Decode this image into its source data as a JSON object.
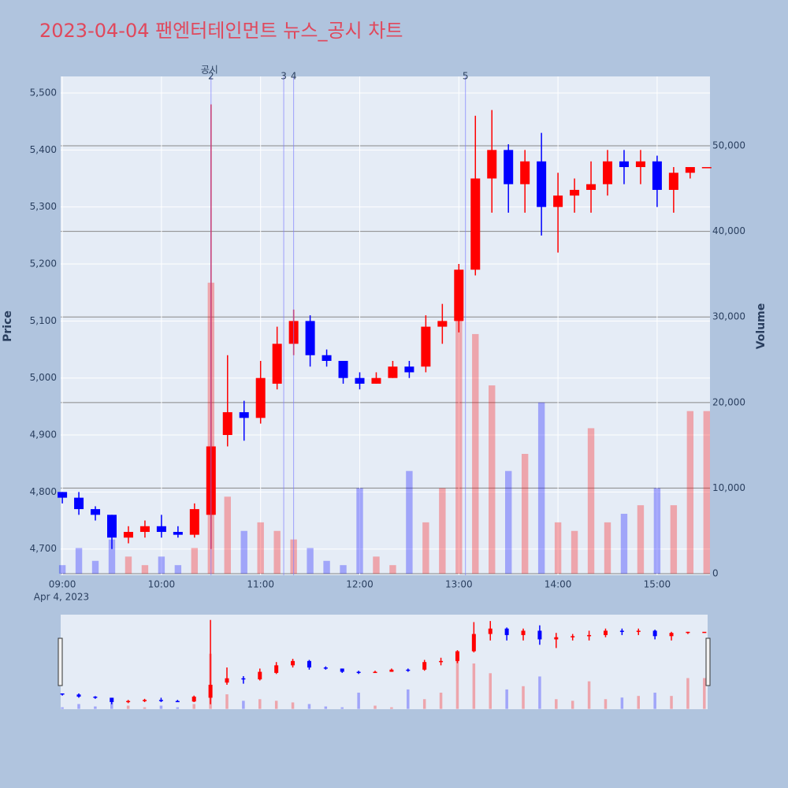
{
  "chart_data": {
    "type": "candlestick",
    "title": "2023-04-04 팬엔터테인먼트 뉴스_공시 차트",
    "y_label": "Price",
    "y2_label": "Volume",
    "date_label": "Apr 4, 2023",
    "x": [
      "09:00",
      "09:10",
      "09:20",
      "09:30",
      "09:40",
      "09:50",
      "10:00",
      "10:10",
      "10:20",
      "10:30",
      "10:40",
      "10:50",
      "11:00",
      "11:10",
      "11:20",
      "11:30",
      "11:40",
      "11:50",
      "12:00",
      "12:10",
      "12:20",
      "12:30",
      "12:40",
      "12:50",
      "13:00",
      "13:10",
      "13:20",
      "13:30",
      "13:40",
      "13:50",
      "14:00",
      "14:10",
      "14:20",
      "14:30",
      "14:40",
      "14:50",
      "15:00",
      "15:10",
      "15:20",
      "15:30"
    ],
    "open": [
      4800,
      4790,
      4770,
      4760,
      4720,
      4730,
      4740,
      4730,
      4725,
      4760,
      4900,
      4940,
      4930,
      4990,
      5060,
      5100,
      5040,
      5030,
      5000,
      4990,
      5000,
      5020,
      5020,
      5090,
      5100,
      5190,
      5350,
      5400,
      5340,
      5380,
      5300,
      5320,
      5330,
      5340,
      5380,
      5370,
      5380,
      5330,
      5360,
      5370
    ],
    "high": [
      4800,
      4800,
      4775,
      4760,
      4740,
      4750,
      4760,
      4740,
      4780,
      5480,
      5040,
      4960,
      5030,
      5090,
      5120,
      5110,
      5050,
      5030,
      5010,
      5010,
      5030,
      5030,
      5110,
      5130,
      5200,
      5460,
      5470,
      5410,
      5400,
      5430,
      5360,
      5350,
      5380,
      5400,
      5400,
      5400,
      5390,
      5370,
      5370,
      5370
    ],
    "low": [
      4780,
      4760,
      4750,
      4700,
      4710,
      4720,
      4720,
      4720,
      4720,
      4700,
      4880,
      4890,
      4920,
      4980,
      5040,
      5020,
      5020,
      4990,
      4980,
      4990,
      5000,
      5000,
      5010,
      5060,
      5080,
      5180,
      5290,
      5290,
      5290,
      5250,
      5220,
      5290,
      5290,
      5320,
      5340,
      5340,
      5300,
      5290,
      5350,
      5370
    ],
    "close": [
      4790,
      4770,
      4760,
      4720,
      4730,
      4740,
      4730,
      4725,
      4770,
      4880,
      4940,
      4930,
      5000,
      5060,
      5100,
      5040,
      5030,
      5000,
      4990,
      5000,
      5020,
      5010,
      5090,
      5100,
      5190,
      5350,
      5400,
      5340,
      5380,
      5300,
      5320,
      5330,
      5340,
      5380,
      5370,
      5380,
      5330,
      5360,
      5370,
      5370
    ],
    "volume": [
      1000,
      3000,
      1500,
      4000,
      2000,
      1000,
      2000,
      1000,
      3000,
      34000,
      9000,
      5000,
      6000,
      5000,
      4000,
      3000,
      1500,
      1000,
      10000,
      2000,
      1000,
      12000,
      6000,
      10000,
      30000,
      28000,
      22000,
      12000,
      14000,
      20000,
      6000,
      5000,
      17000,
      6000,
      7000,
      8000,
      10000,
      8000,
      19000,
      19000
    ],
    "increasing_color": "#ff0000",
    "decreasing_color": "#0000ff",
    "events": [
      {
        "x": "10:30",
        "label": "2",
        "note": "공시"
      },
      {
        "x": "11:14",
        "label": "3"
      },
      {
        "x": "11:20",
        "label": "4"
      },
      {
        "x": "13:04",
        "label": "5"
      }
    ],
    "xlim": [
      "08:59",
      "15:32"
    ],
    "xticks": [
      "09:00",
      "10:00",
      "11:00",
      "12:00",
      "13:00",
      "14:00",
      "15:00"
    ],
    "ylim": [
      4654,
      5529
    ],
    "yticks": [
      {
        "value": 4700,
        "label": "4,700"
      },
      {
        "value": 4800,
        "label": "4,800"
      },
      {
        "value": 4900,
        "label": "4,900"
      },
      {
        "value": 5000,
        "label": "5,000"
      },
      {
        "value": 5100,
        "label": "5,100"
      },
      {
        "value": 5200,
        "label": "5,200"
      },
      {
        "value": 5300,
        "label": "5,300"
      },
      {
        "value": 5400,
        "label": "5,400"
      },
      {
        "value": 5500,
        "label": "5,500"
      }
    ],
    "y2lim": [
      -180,
      58100
    ],
    "y2ticks": [
      0,
      {
        "value": 10000,
        "label": "10,000"
      },
      {
        "value": 20000,
        "label": "20,000"
      },
      {
        "value": 30000,
        "label": "30,000"
      },
      {
        "value": 40000,
        "label": "40,000"
      },
      {
        "value": 50000,
        "label": "50,000"
      }
    ],
    "rangeslider": true
  }
}
